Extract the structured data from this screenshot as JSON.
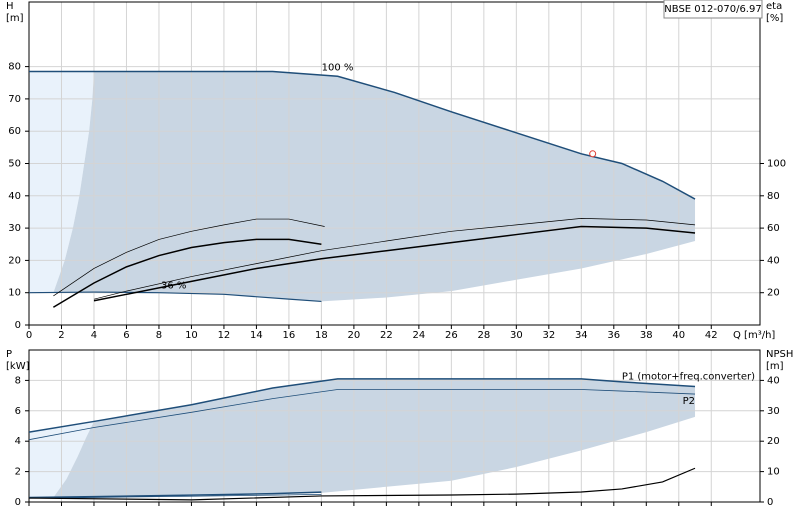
{
  "chart_data": [
    {
      "type": "line",
      "model": "NBSE 012-070/6.97",
      "y_label": "H",
      "y_unit": "[m]",
      "y2_label": "eta",
      "y2_unit": "[%]",
      "x_label": "Q [m³/h]",
      "xlim": [
        0,
        45
      ],
      "xticks": [
        0,
        2,
        4,
        6,
        8,
        10,
        12,
        14,
        16,
        18,
        20,
        22,
        24,
        26,
        28,
        30,
        32,
        34,
        36,
        38,
        40,
        42
      ],
      "ylim": [
        0,
        100
      ],
      "yticks": [
        0,
        10,
        20,
        30,
        40,
        50,
        60,
        70,
        80
      ],
      "y2lim": [
        0,
        200
      ],
      "y2ticks": [
        20,
        40,
        60,
        80,
        100
      ],
      "grid": true,
      "regions": [
        {
          "color": "#e9f2fb",
          "x": [
            0,
            0,
            4,
            3.9,
            3.7,
            3.4,
            3.1,
            2.7,
            2.2,
            1.5
          ],
          "values": [
            10.2,
            78.5,
            78.5,
            70,
            60,
            50,
            40,
            30,
            20,
            10
          ]
        },
        {
          "color": "#c9d6e3",
          "x": [
            1.5,
            2.2,
            2.7,
            3.1,
            3.4,
            3.7,
            3.9,
            4,
            15,
            19,
            22.5,
            26,
            30,
            34,
            36.5,
            39,
            41,
            41,
            38,
            34,
            30,
            26,
            22,
            18,
            16,
            12,
            8,
            4
          ],
          "values": [
            10,
            20,
            30,
            40,
            50,
            60,
            70,
            78.5,
            78.5,
            77,
            72,
            66,
            59.5,
            53,
            50,
            44.5,
            39,
            26,
            22,
            17.5,
            14,
            10.5,
            8.5,
            7.3,
            8,
            9.5,
            10,
            10.2
          ]
        }
      ],
      "series": [
        {
          "name": "100 %",
          "color": "#1f4e79",
          "line_width": 1.5,
          "x": [
            0,
            4,
            15,
            19,
            22.5,
            26,
            30,
            34,
            36.5,
            39,
            41
          ],
          "values": [
            78.5,
            78.5,
            78.5,
            77,
            72,
            66,
            59.5,
            53,
            50,
            44.5,
            39
          ]
        },
        {
          "name": "36 %",
          "color": "#1f4e79",
          "line_width": 1.2,
          "x": [
            0,
            4,
            8,
            12,
            16,
            18
          ],
          "values": [
            10,
            10.2,
            10,
            9.5,
            8,
            7.3
          ]
        },
        {
          "axis": "y2",
          "color": "#000000",
          "line_width": 0.7,
          "x": [
            1.5,
            4,
            6,
            8,
            10,
            12,
            14,
            16,
            18.2
          ],
          "values": [
            18,
            35,
            45,
            53,
            58,
            62,
            65.6,
            65.6,
            61
          ]
        },
        {
          "axis": "y2",
          "color": "#000000",
          "line_width": 1.5,
          "x": [
            1.5,
            4,
            6,
            8,
            10,
            12,
            14,
            16,
            18
          ],
          "values": [
            11,
            26,
            36,
            43,
            48,
            51,
            53,
            53,
            50
          ]
        },
        {
          "axis": "y2",
          "color": "#000000",
          "line_width": 0.7,
          "x": [
            4,
            6,
            10,
            14,
            18,
            22,
            26,
            30,
            34,
            38,
            41
          ],
          "values": [
            16,
            21,
            30,
            38,
            46,
            52,
            58,
            62,
            66,
            65,
            62
          ]
        },
        {
          "axis": "y2",
          "color": "#000000",
          "line_width": 1.5,
          "x": [
            4,
            6,
            10,
            14,
            18,
            22,
            26,
            30,
            34,
            38,
            41
          ],
          "values": [
            15,
            19,
            27,
            35,
            41,
            46,
            51,
            56,
            61,
            60,
            57
          ]
        }
      ],
      "duty_point": {
        "x": 34.7,
        "y": 53,
        "color": "#e03c31"
      }
    },
    {
      "type": "line",
      "y_label": "P",
      "y_unit": "[kW]",
      "y2_label": "NPSH",
      "y2_unit": "[m]",
      "xlim": [
        0,
        45
      ],
      "ylim": [
        0,
        10
      ],
      "yticks": [
        0,
        2,
        4,
        6,
        8
      ],
      "y2lim": [
        0,
        50
      ],
      "y2ticks": [
        0,
        10,
        20,
        30,
        40
      ],
      "grid": true,
      "regions": [
        {
          "color": "#e9f2fb",
          "x": [
            0,
            0,
            4,
            3.5,
            3,
            2.3,
            1.5
          ],
          "values": [
            0.3,
            4.6,
            5.3,
            4.2,
            3,
            1.5,
            0.3
          ]
        },
        {
          "color": "#c9d6e3",
          "x": [
            1.5,
            2.3,
            3,
            3.5,
            4,
            10,
            15,
            19,
            34,
            36.5,
            41,
            41,
            38,
            34,
            30,
            26,
            18,
            10,
            4
          ],
          "values": [
            0.3,
            1.5,
            3,
            4.2,
            5.3,
            6.4,
            7.5,
            8.1,
            8.1,
            7.9,
            7.6,
            5.6,
            4.6,
            3.4,
            2.3,
            1.4,
            0.6,
            0.45,
            0.35
          ]
        }
      ],
      "series": [
        {
          "name": "P1 (motor+freq.converter)",
          "color": "#1f4e79",
          "line_width": 1.5,
          "x": [
            0,
            4,
            10,
            15,
            19,
            34,
            36.5,
            41
          ],
          "values": [
            4.6,
            5.3,
            6.4,
            7.5,
            8.1,
            8.1,
            7.9,
            7.6
          ]
        },
        {
          "name": "P2",
          "color": "#1f4e79",
          "line_width": 0.8,
          "x": [
            0,
            4,
            10,
            15,
            19,
            34,
            36.5,
            41
          ],
          "values": [
            4.1,
            4.9,
            5.9,
            6.8,
            7.4,
            7.4,
            7.3,
            7.1
          ]
        },
        {
          "color": "#1f4e79",
          "line_width": 1.5,
          "x": [
            0,
            4,
            10,
            15,
            18
          ],
          "values": [
            0.3,
            0.35,
            0.45,
            0.55,
            0.65
          ]
        },
        {
          "color": "#1f4e79",
          "line_width": 0.8,
          "x": [
            0,
            4,
            10,
            15,
            18
          ],
          "values": [
            0.25,
            0.3,
            0.38,
            0.45,
            0.5
          ]
        },
        {
          "axis": "y2",
          "color": "#000000",
          "line_width": 1.2,
          "x": [
            0,
            10,
            18,
            26,
            30,
            34,
            36.5,
            39,
            41
          ],
          "values": [
            1.3,
            0.7,
            2,
            2.3,
            2.6,
            3.3,
            4.3,
            6.6,
            11.1
          ]
        }
      ]
    }
  ]
}
